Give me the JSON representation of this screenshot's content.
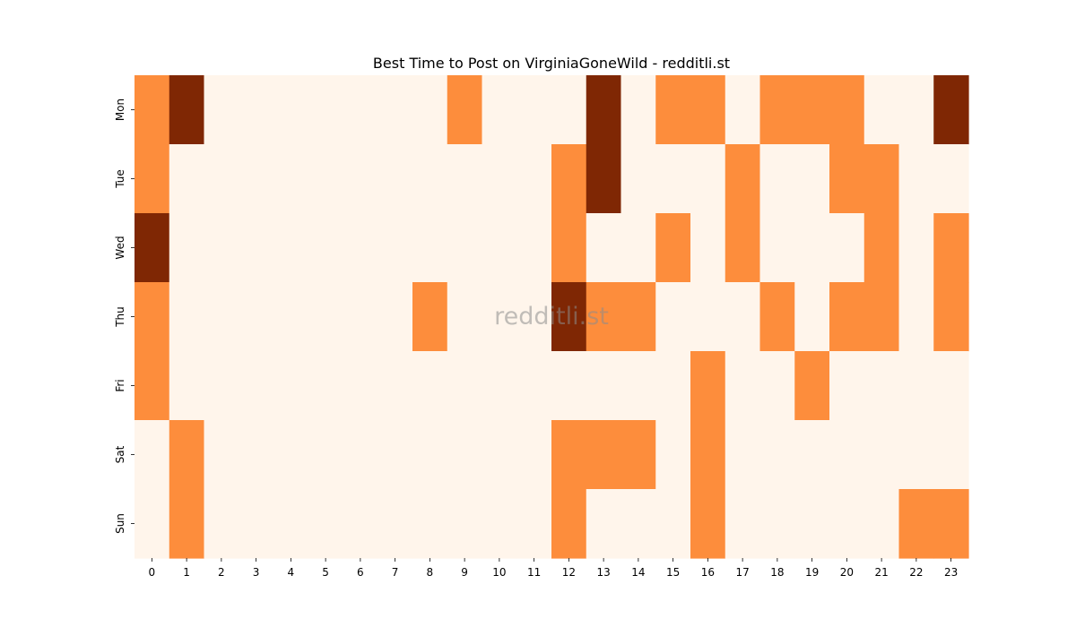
{
  "chart_data": {
    "type": "heatmap",
    "title": "Best Time to Post on VirginiaGoneWild - redditli.st",
    "xlabel": "",
    "ylabel": "",
    "x_categories": [
      "0",
      "1",
      "2",
      "3",
      "4",
      "5",
      "6",
      "7",
      "8",
      "9",
      "10",
      "11",
      "12",
      "13",
      "14",
      "15",
      "16",
      "17",
      "18",
      "19",
      "20",
      "21",
      "22",
      "23"
    ],
    "y_categories": [
      "Mon",
      "Tue",
      "Wed",
      "Thu",
      "Fri",
      "Sat",
      "Sun"
    ],
    "values": [
      [
        1,
        2,
        0,
        0,
        0,
        0,
        0,
        0,
        0,
        1,
        0,
        0,
        0,
        2,
        0,
        1,
        1,
        0,
        1,
        1,
        1,
        0,
        0,
        2
      ],
      [
        1,
        0,
        0,
        0,
        0,
        0,
        0,
        0,
        0,
        0,
        0,
        0,
        1,
        2,
        0,
        0,
        0,
        1,
        0,
        0,
        1,
        1,
        0,
        0
      ],
      [
        2,
        0,
        0,
        0,
        0,
        0,
        0,
        0,
        0,
        0,
        0,
        0,
        1,
        0,
        0,
        1,
        0,
        1,
        0,
        0,
        0,
        1,
        0,
        1
      ],
      [
        1,
        0,
        0,
        0,
        0,
        0,
        0,
        0,
        1,
        0,
        0,
        0,
        2,
        1,
        1,
        0,
        0,
        0,
        1,
        0,
        1,
        1,
        0,
        1
      ],
      [
        1,
        0,
        0,
        0,
        0,
        0,
        0,
        0,
        0,
        0,
        0,
        0,
        0,
        0,
        0,
        0,
        1,
        0,
        0,
        1,
        0,
        0,
        0,
        0
      ],
      [
        0,
        1,
        0,
        0,
        0,
        0,
        0,
        0,
        0,
        0,
        0,
        0,
        1,
        1,
        1,
        0,
        1,
        0,
        0,
        0,
        0,
        0,
        0,
        0
      ],
      [
        0,
        1,
        0,
        0,
        0,
        0,
        0,
        0,
        0,
        0,
        0,
        0,
        1,
        0,
        0,
        0,
        1,
        0,
        0,
        0,
        0,
        0,
        1,
        1
      ]
    ],
    "value_range": [
      0,
      2
    ],
    "colormap": "Oranges",
    "level_colors": [
      "#fff5eb",
      "#fd8d3c",
      "#7f2704"
    ],
    "colorbar": false,
    "grid": false,
    "watermark": "redditli.st"
  }
}
